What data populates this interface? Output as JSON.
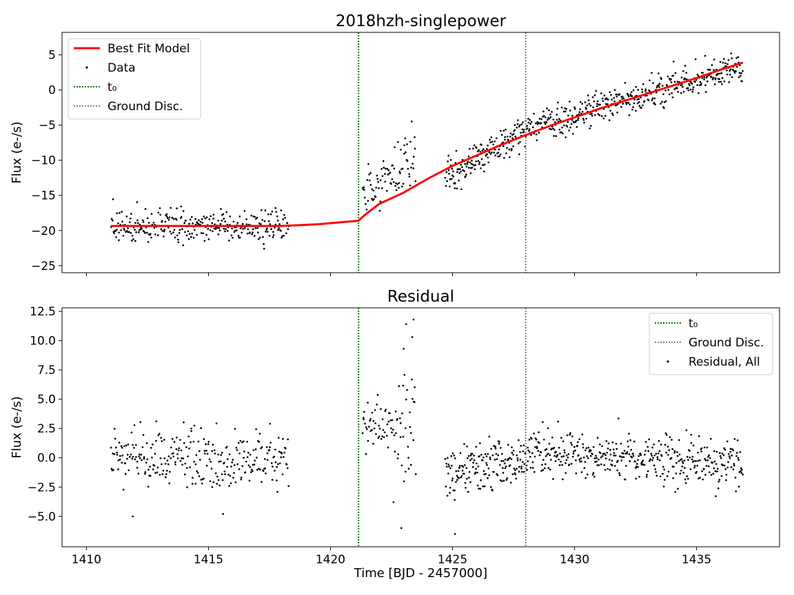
{
  "chart_data": [
    {
      "type": "scatter",
      "title": "2018hzh-singlepower",
      "xlabel": "",
      "ylabel": "Flux (e-/s)",
      "xlim": [
        1409.0,
        1438.4
      ],
      "ylim": [
        -26,
        8.2
      ],
      "xticks": [
        1410,
        1415,
        1420,
        1425,
        1430,
        1435
      ],
      "xtick_labels": [
        "",
        "",
        "",
        "",
        "",
        ""
      ],
      "yticks": [
        -25,
        -20,
        -15,
        -10,
        -5,
        0,
        5
      ],
      "ytick_labels": [
        "−25",
        "−20",
        "−15",
        "−10",
        "−5",
        "0",
        "5"
      ],
      "grid": false,
      "legend": {
        "position": "upper-left",
        "entries": [
          {
            "label": "Best Fit Model",
            "marker": "line",
            "color": "#ff0000"
          },
          {
            "label": "Data",
            "marker": "point",
            "color": "#000000"
          },
          {
            "label": "t₀",
            "marker": "dotted",
            "color": "#008000"
          },
          {
            "label": "Ground Disc.",
            "marker": "dotted",
            "color": "#808080"
          }
        ]
      },
      "vlines": [
        {
          "label": "t₀",
          "x": 1421.15,
          "color": "#008000"
        },
        {
          "label": "Ground Disc.",
          "x": 1428.0,
          "color": "#808080"
        }
      ],
      "model": {
        "name": "Best Fit Model",
        "color": "#ff0000",
        "x": [
          1411.0,
          1418.0,
          1419.5,
          1421.15,
          1421.4,
          1422.0,
          1423.0,
          1424.0,
          1425.0,
          1426.0,
          1427.0,
          1428.0,
          1429.0,
          1430.0,
          1431.0,
          1432.0,
          1433.0,
          1434.0,
          1435.0,
          1436.0,
          1436.9
        ],
        "y": [
          -19.35,
          -19.35,
          -19.1,
          -18.6,
          -17.8,
          -16.2,
          -14.6,
          -12.6,
          -10.8,
          -9.3,
          -7.8,
          -6.4,
          -5.1,
          -3.9,
          -2.7,
          -1.6,
          -0.5,
          0.6,
          1.7,
          2.9,
          3.9
        ]
      },
      "data_segments": [
        {
          "x_start": 1411.0,
          "x_end": 1418.3,
          "baseline": -19.35,
          "slope": 0.0,
          "noise": 1.6,
          "n": 290
        },
        {
          "x_start": 1421.3,
          "x_end": 1422.5,
          "baseline": -14.5,
          "slope": 2.0,
          "noise": 2.0,
          "n": 45
        },
        {
          "x_start": 1422.5,
          "x_end": 1423.5,
          "baseline": -12.5,
          "slope": 3.5,
          "noise": 3.0,
          "n": 40
        },
        {
          "x_start": 1424.7,
          "x_end": 1428.0,
          "baseline": -12.3,
          "slope": 1.9,
          "noise": 1.6,
          "n": 170
        },
        {
          "x_start": 1428.0,
          "x_end": 1436.9,
          "baseline": -5.5,
          "slope": 1.0,
          "noise": 1.5,
          "n": 420
        }
      ]
    },
    {
      "type": "scatter",
      "title": "Residual",
      "xlabel": "Time [BJD - 2457000]",
      "ylabel": "Flux (e-/s)",
      "xlim": [
        1409.0,
        1438.4
      ],
      "ylim": [
        -7.6,
        12.8
      ],
      "xticks": [
        1410,
        1415,
        1420,
        1425,
        1430,
        1435
      ],
      "xtick_labels": [
        "1410",
        "1415",
        "1420",
        "1425",
        "1430",
        "1435"
      ],
      "yticks": [
        -5.0,
        -2.5,
        0.0,
        2.5,
        5.0,
        7.5,
        10.0,
        12.5
      ],
      "ytick_labels": [
        "−5.0",
        "−2.5",
        "0.0",
        "2.5",
        "5.0",
        "7.5",
        "10.0",
        "12.5"
      ],
      "grid": false,
      "legend": {
        "position": "upper-right",
        "entries": [
          {
            "label": "t₀",
            "marker": "dotted",
            "color": "#008000"
          },
          {
            "label": "Ground Disc.",
            "marker": "dotted",
            "color": "#808080"
          },
          {
            "label": "Residual, All",
            "marker": "point",
            "color": "#000000"
          }
        ]
      },
      "vlines": [
        {
          "label": "t₀",
          "x": 1421.15,
          "color": "#008000"
        },
        {
          "label": "Ground Disc.",
          "x": 1428.0,
          "color": "#808080"
        }
      ],
      "data_segments": [
        {
          "x_start": 1411.0,
          "x_end": 1418.3,
          "baseline": 0.0,
          "slope": 0.0,
          "noise": 1.5,
          "n": 290
        },
        {
          "x_start": 1421.3,
          "x_end": 1422.5,
          "baseline": 2.6,
          "slope": 0.0,
          "noise": 1.5,
          "n": 45
        },
        {
          "x_start": 1422.5,
          "x_end": 1423.5,
          "baseline": 1.8,
          "slope": 0.0,
          "noise": 3.2,
          "n": 40
        },
        {
          "x_start": 1424.7,
          "x_end": 1428.0,
          "baseline": -1.2,
          "slope": 0.3,
          "noise": 1.4,
          "n": 170
        },
        {
          "x_start": 1428.0,
          "x_end": 1436.9,
          "baseline": 0.6,
          "slope": -0.15,
          "noise": 1.4,
          "n": 420
        }
      ],
      "outliers": [
        {
          "x": 1423.1,
          "y": 11.4
        },
        {
          "x": 1423.4,
          "y": 11.8
        },
        {
          "x": 1423.0,
          "y": 9.3
        },
        {
          "x": 1423.35,
          "y": 10.3
        },
        {
          "x": 1422.9,
          "y": -6.0
        },
        {
          "x": 1411.9,
          "y": -5.0
        },
        {
          "x": 1415.6,
          "y": -4.8
        },
        {
          "x": 1425.1,
          "y": -6.5
        }
      ]
    }
  ]
}
